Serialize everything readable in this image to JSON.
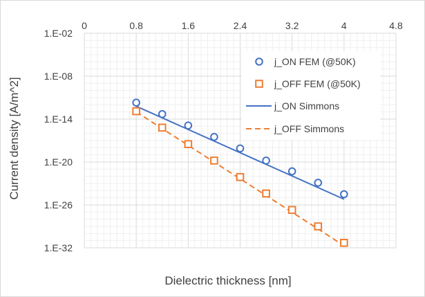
{
  "chart_data": {
    "type": "scatter",
    "title": "",
    "xlabel": "Dielectric thickness [nm]",
    "ylabel": "Current density [A/m^2]",
    "xlim": [
      0,
      4.8
    ],
    "x_ticks": [
      "0",
      "0.8",
      "1.6",
      "2.4",
      "3.2",
      "4",
      "4.8"
    ],
    "y_scale": "log",
    "ylim_exponent": [
      -32,
      -2
    ],
    "y_ticks": [
      "1.E-02",
      "1.E-08",
      "1.E-14",
      "1.E-20",
      "1.E-26",
      "1.E-32"
    ],
    "grid": true,
    "legend_position": "top-right",
    "series": [
      {
        "name": "j_ON FEM (@50K)",
        "kind": "markers",
        "marker": "circle",
        "color": "#4472c4",
        "x": [
          0.8,
          1.2,
          1.6,
          2.0,
          2.4,
          2.8,
          3.2,
          3.6,
          4.0
        ],
        "log10_y": [
          -11.7,
          -13.3,
          -14.9,
          -16.5,
          -18.1,
          -19.8,
          -21.3,
          -22.9,
          -24.5
        ]
      },
      {
        "name": "j_OFF FEM (@50K)",
        "kind": "markers",
        "marker": "square",
        "color": "#ed7d31",
        "x": [
          0.8,
          1.2,
          1.6,
          2.0,
          2.4,
          2.8,
          3.2,
          3.6,
          4.0
        ],
        "log10_y": [
          -12.9,
          -15.2,
          -17.5,
          -19.8,
          -22.1,
          -24.4,
          -26.7,
          -29.0,
          -31.3
        ]
      },
      {
        "name": "j_ON Simmons",
        "kind": "line",
        "dash": "solid",
        "color": "#4472c4",
        "x": [
          0.8,
          4.0
        ],
        "log10_y": [
          -12.2,
          -25.2
        ]
      },
      {
        "name": "j_OFF Simmons",
        "kind": "line",
        "dash": "dashed",
        "color": "#ed7d31",
        "x": [
          0.8,
          4.0
        ],
        "log10_y": [
          -13.0,
          -31.7
        ]
      }
    ]
  }
}
